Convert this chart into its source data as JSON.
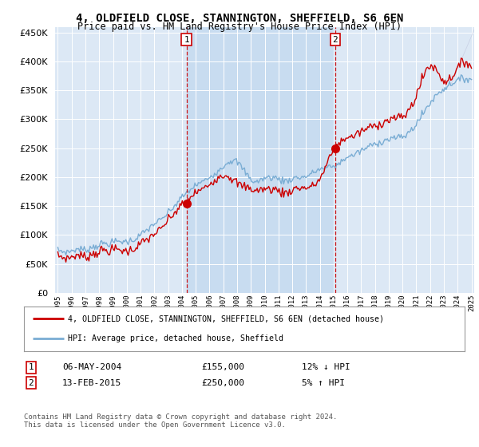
{
  "title": "4, OLDFIELD CLOSE, STANNINGTON, SHEFFIELD, S6 6EN",
  "subtitle": "Price paid vs. HM Land Registry's House Price Index (HPI)",
  "legend_label_red": "4, OLDFIELD CLOSE, STANNINGTON, SHEFFIELD, S6 6EN (detached house)",
  "legend_label_blue": "HPI: Average price, detached house, Sheffield",
  "annotation1_date": "06-MAY-2004",
  "annotation1_price": "£155,000",
  "annotation1_hpi": "12% ↓ HPI",
  "annotation2_date": "13-FEB-2015",
  "annotation2_price": "£250,000",
  "annotation2_hpi": "5% ↑ HPI",
  "footer": "Contains HM Land Registry data © Crown copyright and database right 2024.\nThis data is licensed under the Open Government Licence v3.0.",
  "ylim": [
    0,
    460000
  ],
  "yticks": [
    0,
    50000,
    100000,
    150000,
    200000,
    250000,
    300000,
    350000,
    400000,
    450000
  ],
  "plot_bg_color": "#dce8f5",
  "shade_bg_color": "#c8dcf0",
  "red_color": "#cc0000",
  "blue_color": "#7aadd4",
  "vline_color": "#cc0000",
  "marker1_x": 2004.33,
  "marker1_y": 155000,
  "marker2_x": 2015.12,
  "marker2_y": 250000,
  "xmin": 1995,
  "xmax": 2025,
  "shade_x1": 2004.33,
  "shade_x2": 2015.12
}
